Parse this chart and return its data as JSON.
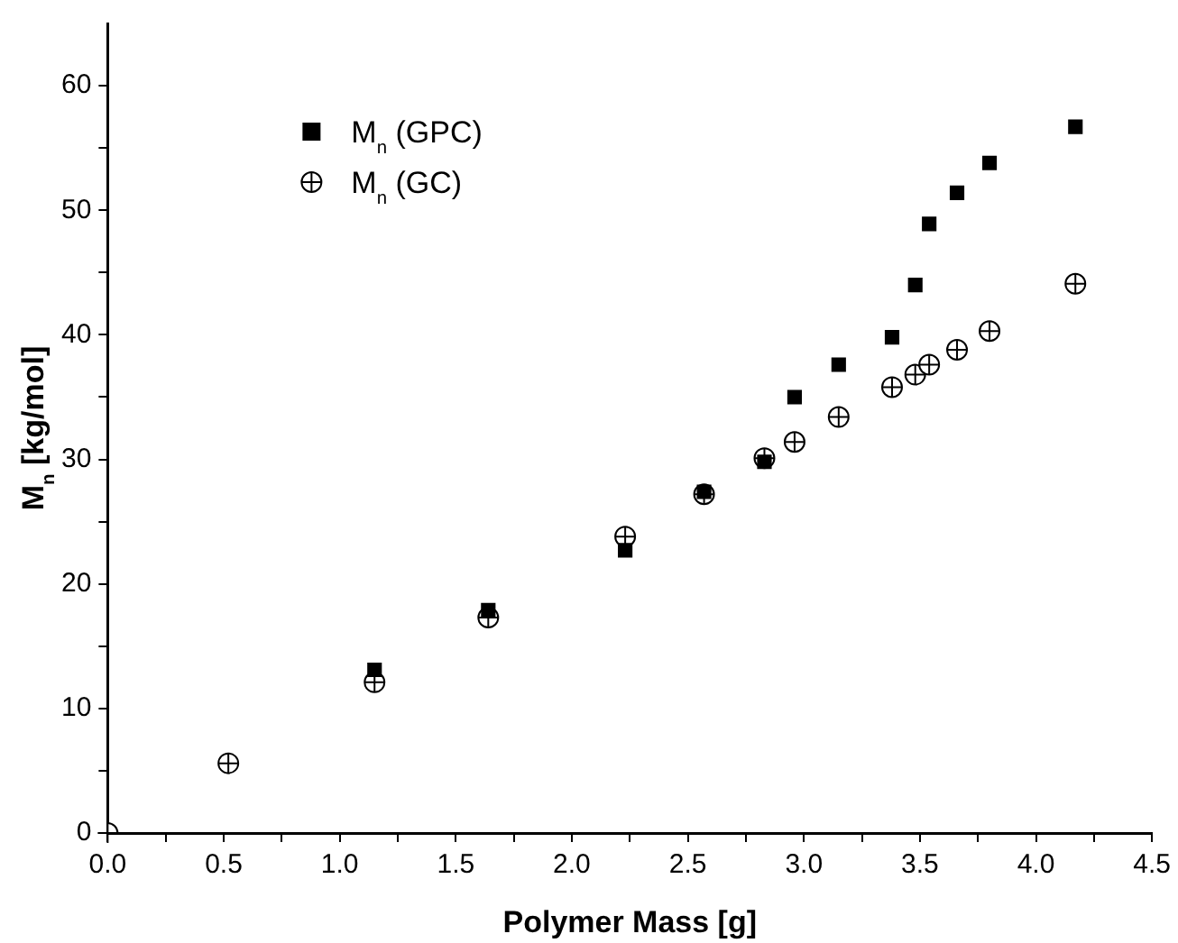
{
  "chart_data": {
    "type": "scatter",
    "xlabel": "Polymer Mass [g]",
    "ylabel": "M$_{n}$ [kg/mol]",
    "xlim": [
      0,
      4.5
    ],
    "xticks": [
      {
        "value": 0,
        "label": "0.0"
      },
      {
        "value": 0.25,
        "label": null
      },
      {
        "value": 0.5,
        "label": "0.5"
      },
      {
        "value": 0.75,
        "label": null
      },
      {
        "value": 1,
        "label": "1.0"
      },
      {
        "value": 1.25,
        "label": null
      },
      {
        "value": 1.5,
        "label": "1.5"
      },
      {
        "value": 1.75,
        "label": null
      },
      {
        "value": 2,
        "label": "2.0"
      },
      {
        "value": 2.25,
        "label": null
      },
      {
        "value": 2.5,
        "label": "2.5"
      },
      {
        "value": 2.75,
        "label": null
      },
      {
        "value": 3,
        "label": "3.0"
      },
      {
        "value": 3.25,
        "label": null
      },
      {
        "value": 3.5,
        "label": "3.5"
      },
      {
        "value": 3.75,
        "label": null
      },
      {
        "value": 4,
        "label": "4.0"
      },
      {
        "value": 4.25,
        "label": null
      },
      {
        "value": 4.5,
        "label": "4.5"
      }
    ],
    "ylim": [
      0,
      65
    ],
    "yticks": [
      0,
      {
        "value": 5,
        "label": null
      },
      10,
      {
        "value": 15,
        "label": null
      },
      20,
      {
        "value": 25,
        "label": null
      },
      30,
      {
        "value": 35,
        "label": null
      },
      40,
      {
        "value": 45,
        "label": null
      },
      50,
      {
        "value": 55,
        "label": null
      },
      60
    ],
    "grid": false,
    "legend": "top left",
    "series": [
      {
        "name": "M$_{n}$ (GPC)",
        "color": "#000000",
        "marker": "square",
        "x": [
          1.15,
          1.64,
          2.23,
          2.57,
          2.83,
          2.96,
          3.15,
          3.38,
          3.48,
          3.54,
          3.66,
          3.8,
          4.17
        ],
        "values": [
          13.1,
          17.9,
          22.7,
          27.4,
          29.8,
          35.0,
          37.6,
          39.8,
          44.0,
          48.9,
          51.4,
          53.8,
          56.7
        ]
      },
      {
        "name": "M$_{n}$ (GC)",
        "color": "#000000",
        "marker": "circle",
        "x": [
          0,
          0.52,
          1.15,
          1.64,
          2.23,
          2.57,
          2.83,
          2.96,
          3.15,
          3.38,
          3.48,
          3.54,
          3.66,
          3.8,
          4.17
        ],
        "values": [
          0,
          5.6,
          12.1,
          17.3,
          23.8,
          27.2,
          30.1,
          31.4,
          33.4,
          35.8,
          36.8,
          37.6,
          38.8,
          40.3,
          44.1
        ]
      }
    ]
  }
}
